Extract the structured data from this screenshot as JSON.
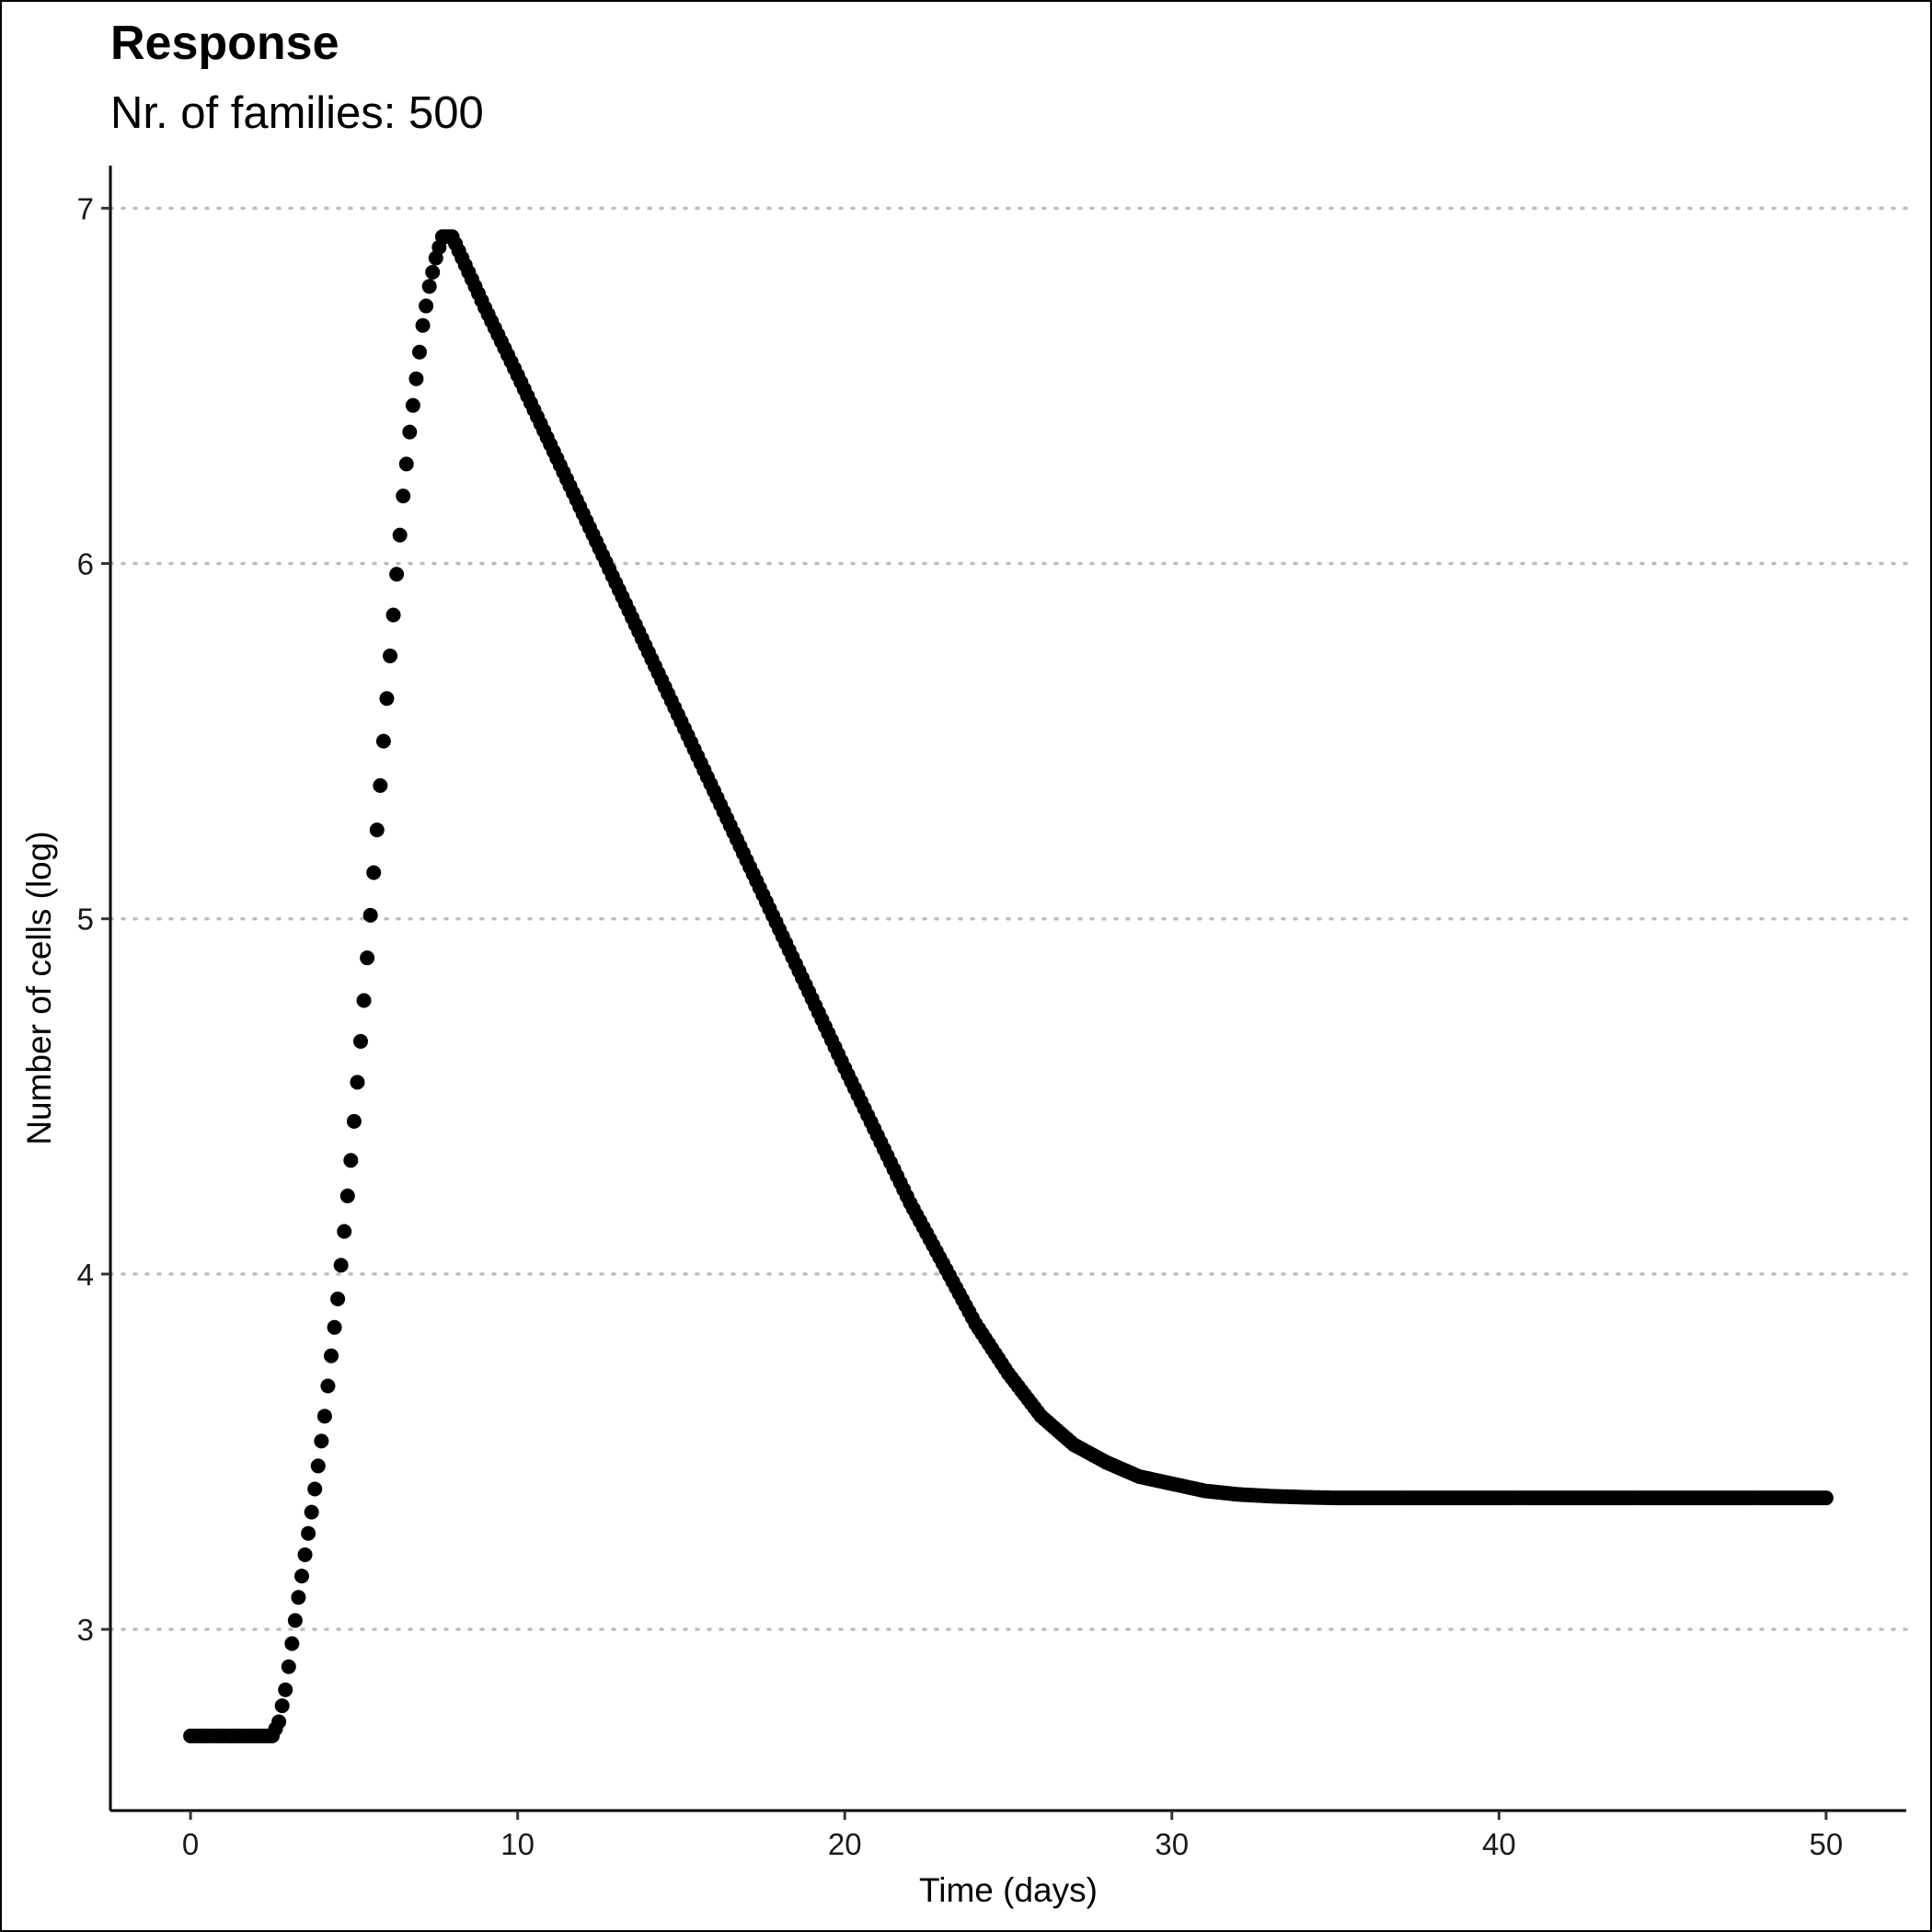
{
  "chart_data": {
    "type": "scatter",
    "title": "Response",
    "subtitle": "Nr. of families: 500",
    "xlabel": "Time (days)",
    "ylabel": "Number of cells (log)",
    "xlim": [
      -2.45,
      52.45
    ],
    "ylim": [
      2.49,
      7.12
    ],
    "x_ticks": [
      0,
      10,
      20,
      30,
      40,
      50
    ],
    "y_ticks": [
      3,
      4,
      5,
      6,
      7
    ],
    "grid": "horizontal-dotted",
    "legend": "none",
    "point_color": "#000000",
    "sample_step_days": 0.1,
    "series": [
      {
        "x": [
          0,
          1,
          2,
          2.5,
          2.7,
          2.9,
          3.1,
          3.3,
          3.5,
          3.7,
          3.9,
          4.1,
          4.3,
          4.5,
          4.7,
          4.9,
          5.1,
          5.3,
          5.5,
          5.7,
          5.9,
          6.1,
          6.3,
          6.5,
          6.7,
          6.9,
          7.1,
          7.3,
          7.5,
          7.7,
          8,
          9,
          10,
          12,
          14,
          16,
          18,
          20,
          22,
          24,
          25,
          26,
          27,
          28,
          29,
          30,
          31,
          32,
          33,
          34,
          35,
          36,
          38,
          40,
          45,
          50
        ],
        "y": [
          2.7,
          2.7,
          2.7,
          2.7,
          2.74,
          2.83,
          2.96,
          3.09,
          3.21,
          3.33,
          3.46,
          3.6,
          3.77,
          3.93,
          4.12,
          4.32,
          4.54,
          4.77,
          5.01,
          5.25,
          5.5,
          5.74,
          5.97,
          6.19,
          6.37,
          6.52,
          6.67,
          6.78,
          6.86,
          6.92,
          6.92,
          6.72,
          6.53,
          6.14,
          5.75,
          5.36,
          4.97,
          4.58,
          4.2,
          3.86,
          3.72,
          3.6,
          3.52,
          3.47,
          3.43,
          3.41,
          3.39,
          3.38,
          3.375,
          3.372,
          3.37,
          3.37,
          3.37,
          3.37,
          3.37,
          3.37
        ]
      }
    ]
  }
}
